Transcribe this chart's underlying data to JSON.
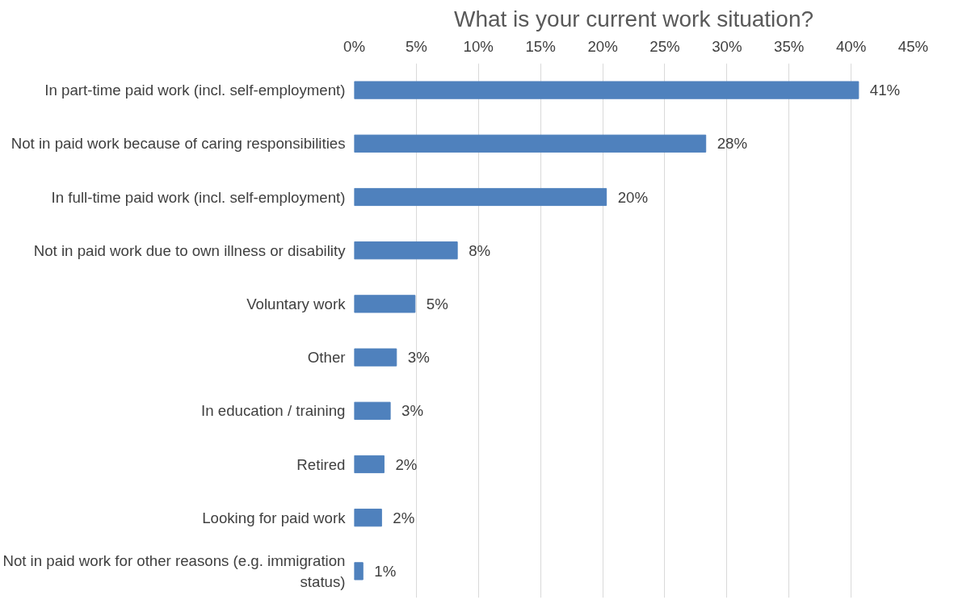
{
  "chart_data": {
    "type": "bar",
    "orientation": "horizontal",
    "title": "What is your current work situation?",
    "categories": [
      "In part-time paid work (incl. self-employment)",
      "Not in paid work because of caring responsibilities",
      "In full-time paid work (incl. self-employment)",
      "Not in paid work due to own illness or disability",
      "Voluntary work",
      "Other",
      "In education / training",
      "Retired",
      "Looking for paid work",
      "Not in paid work for other reasons (e.g. immigration status)"
    ],
    "values": [
      40.6,
      28.3,
      20.3,
      8.3,
      4.9,
      3.4,
      2.9,
      2.4,
      2.2,
      0.7
    ],
    "value_labels": [
      "41%",
      "28%",
      "20%",
      "8%",
      "5%",
      "3%",
      "3%",
      "2%",
      "2%",
      "1%"
    ],
    "color": "#4f81bd",
    "xlim": [
      0,
      45
    ],
    "xticks": [
      {
        "value": 0,
        "label": "0%"
      },
      {
        "value": 5,
        "label": "5%"
      },
      {
        "value": 10,
        "label": "10%"
      },
      {
        "value": 15,
        "label": "15%"
      },
      {
        "value": 20,
        "label": "20%"
      },
      {
        "value": 25,
        "label": "25%"
      },
      {
        "value": 30,
        "label": "30%"
      },
      {
        "value": 35,
        "label": "35%"
      },
      {
        "value": 40,
        "label": "40%"
      },
      {
        "value": 45,
        "label": "45%"
      }
    ],
    "grid": "x"
  }
}
